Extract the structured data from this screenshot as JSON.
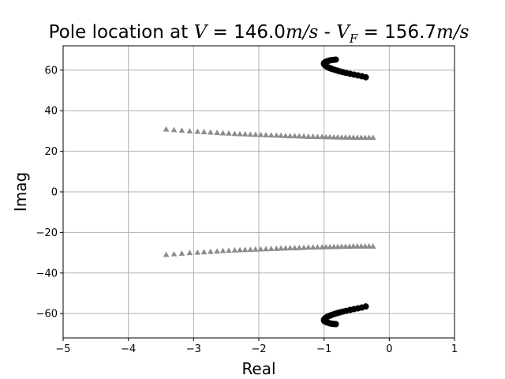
{
  "chart_data": {
    "type": "scatter",
    "title": {
      "prefix": "Pole location at ",
      "v_symbol": "V",
      "v_expr": " = 146.0",
      "units": "m/s",
      "separator": " - ",
      "vf_symbol": "V",
      "vf_subscript": "F",
      "vf_expr": " = 156.7"
    },
    "xlabel": "Real",
    "ylabel": "Imag",
    "xlim": [
      -5,
      1
    ],
    "ylim": [
      -72,
      72
    ],
    "xticks": [
      -5,
      -4,
      -3,
      -2,
      -1,
      0,
      1
    ],
    "yticks": [
      -60,
      -40,
      -20,
      0,
      20,
      40,
      60
    ],
    "xtick_labels": [
      "−5",
      "−4",
      "−3",
      "−2",
      "−1",
      "0",
      "1"
    ],
    "ytick_labels": [
      "−60",
      "−40",
      "−20",
      "0",
      "20",
      "40",
      "60"
    ],
    "grid": true,
    "colors": {
      "circles": "#000000",
      "triangles": "#8c8c8c",
      "grid": "#b0b0b0"
    },
    "series": [
      {
        "marker": "circle",
        "x": [
          -0.36,
          -0.42,
          -0.48,
          -0.54,
          -0.6,
          -0.66,
          -0.71,
          -0.76,
          -0.8,
          -0.84,
          -0.88,
          -0.91,
          -0.94,
          -0.96,
          -0.98,
          -0.99,
          -1.0,
          -1.0,
          -0.99,
          -0.97,
          -0.94,
          -0.91,
          -0.88,
          -0.85,
          -0.82
        ],
        "y": [
          56.5,
          57.0,
          57.4,
          57.8,
          58.2,
          58.6,
          59.0,
          59.4,
          59.8,
          60.2,
          60.6,
          61.0,
          61.4,
          61.8,
          62.2,
          62.6,
          63.0,
          63.4,
          63.8,
          64.2,
          64.5,
          64.8,
          65.0,
          65.1,
          65.2
        ]
      },
      {
        "marker": "circle",
        "x": [
          -0.36,
          -0.42,
          -0.48,
          -0.54,
          -0.6,
          -0.66,
          -0.71,
          -0.76,
          -0.8,
          -0.84,
          -0.88,
          -0.91,
          -0.94,
          -0.96,
          -0.98,
          -0.99,
          -1.0,
          -1.0,
          -0.99,
          -0.97,
          -0.94,
          -0.91,
          -0.88,
          -0.85,
          -0.82
        ],
        "y": [
          -56.5,
          -57.0,
          -57.4,
          -57.8,
          -58.2,
          -58.6,
          -59.0,
          -59.4,
          -59.8,
          -60.2,
          -60.6,
          -61.0,
          -61.4,
          -61.8,
          -62.2,
          -62.6,
          -63.0,
          -63.4,
          -63.8,
          -64.2,
          -64.5,
          -64.8,
          -65.0,
          -65.1,
          -65.2
        ]
      },
      {
        "marker": "triangle",
        "x": [
          -3.42,
          -3.3,
          -3.18,
          -3.06,
          -2.94,
          -2.84,
          -2.74,
          -2.64,
          -2.55,
          -2.46,
          -2.37,
          -2.29,
          -2.21,
          -2.13,
          -2.05,
          -1.97,
          -1.89,
          -1.81,
          -1.73,
          -1.66,
          -1.59,
          -1.52,
          -1.45,
          -1.38,
          -1.31,
          -1.24,
          -1.17,
          -1.1,
          -1.03,
          -0.97,
          -0.91,
          -0.85,
          -0.79,
          -0.73,
          -0.67,
          -0.61,
          -0.55,
          -0.49,
          -0.43,
          -0.37,
          -0.31,
          -0.25
        ],
        "y": [
          30.9,
          30.6,
          30.3,
          30.0,
          29.8,
          29.6,
          29.4,
          29.2,
          29.0,
          28.9,
          28.7,
          28.6,
          28.5,
          28.4,
          28.3,
          28.2,
          28.1,
          28.0,
          27.9,
          27.8,
          27.7,
          27.6,
          27.6,
          27.5,
          27.4,
          27.3,
          27.3,
          27.2,
          27.2,
          27.1,
          27.1,
          27.0,
          27.0,
          26.9,
          26.9,
          26.9,
          26.8,
          26.8,
          26.8,
          26.8,
          26.8,
          26.8
        ]
      },
      {
        "marker": "triangle",
        "x": [
          -3.42,
          -3.3,
          -3.18,
          -3.06,
          -2.94,
          -2.84,
          -2.74,
          -2.64,
          -2.55,
          -2.46,
          -2.37,
          -2.29,
          -2.21,
          -2.13,
          -2.05,
          -1.97,
          -1.89,
          -1.81,
          -1.73,
          -1.66,
          -1.59,
          -1.52,
          -1.45,
          -1.38,
          -1.31,
          -1.24,
          -1.17,
          -1.1,
          -1.03,
          -0.97,
          -0.91,
          -0.85,
          -0.79,
          -0.73,
          -0.67,
          -0.61,
          -0.55,
          -0.49,
          -0.43,
          -0.37,
          -0.31,
          -0.25
        ],
        "y": [
          -30.9,
          -30.6,
          -30.3,
          -30.0,
          -29.8,
          -29.6,
          -29.4,
          -29.2,
          -29.0,
          -28.9,
          -28.7,
          -28.6,
          -28.5,
          -28.4,
          -28.3,
          -28.2,
          -28.1,
          -28.0,
          -27.9,
          -27.8,
          -27.7,
          -27.6,
          -27.6,
          -27.5,
          -27.4,
          -27.3,
          -27.3,
          -27.2,
          -27.2,
          -27.1,
          -27.1,
          -27.0,
          -27.0,
          -26.9,
          -26.9,
          -26.9,
          -26.8,
          -26.8,
          -26.8,
          -26.8,
          -26.8,
          -26.8
        ]
      }
    ]
  }
}
